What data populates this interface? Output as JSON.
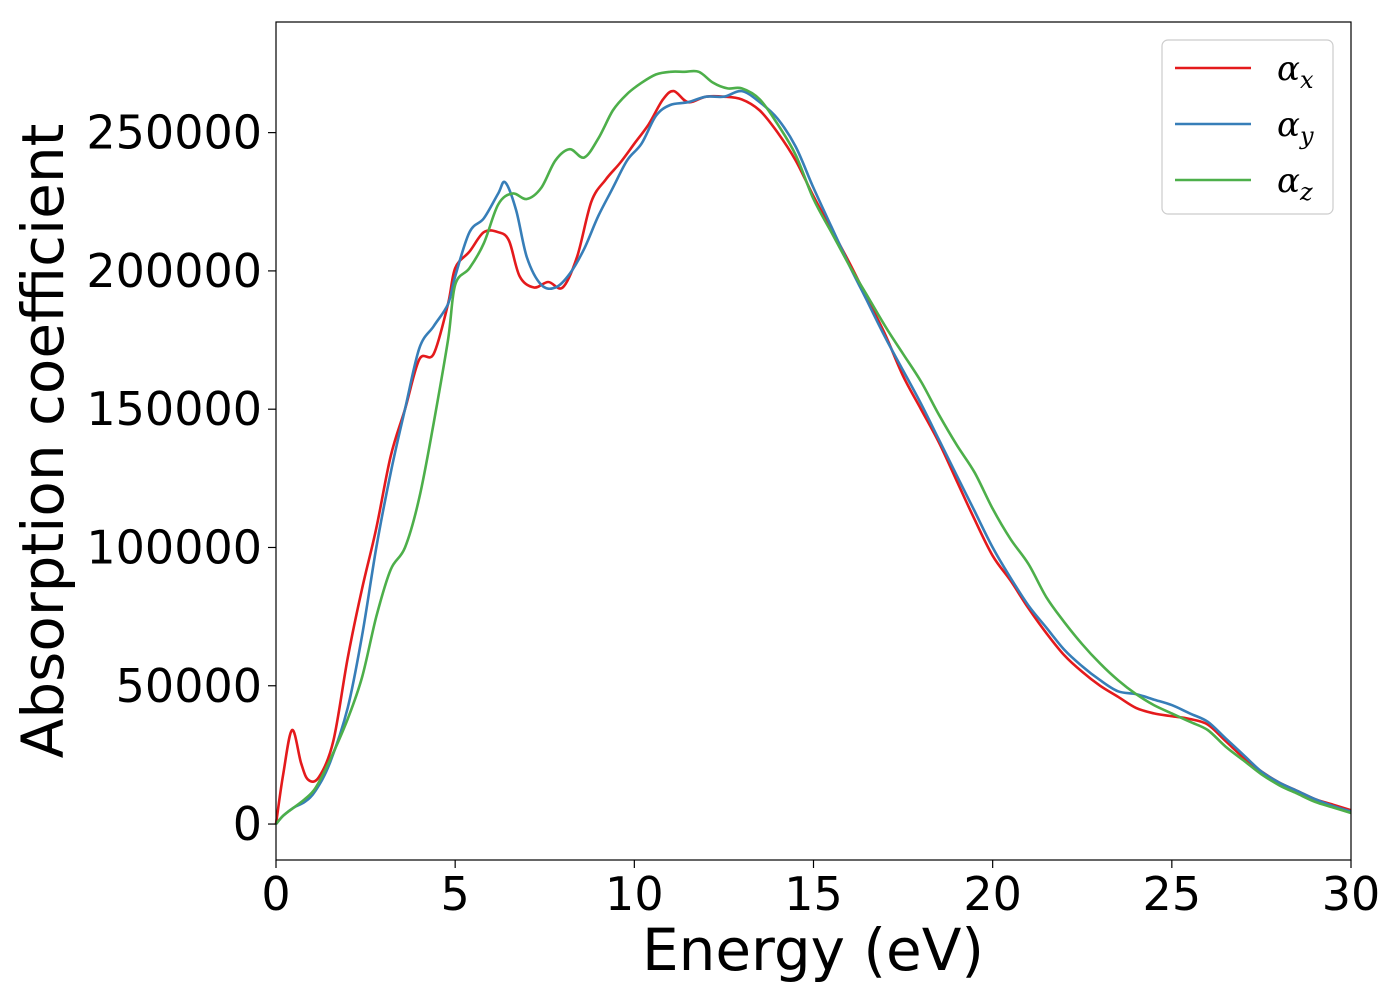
{
  "chart_data": {
    "type": "line",
    "title": "",
    "xlabel": "Energy (eV)",
    "ylabel": "Absorption coefficient",
    "xlim": [
      0,
      30
    ],
    "ylim": [
      -13000,
      290000
    ],
    "xticks": [
      0,
      5,
      10,
      15,
      20,
      25,
      30
    ],
    "xtick_labels": [
      "0",
      "5",
      "10",
      "15",
      "20",
      "25",
      "30"
    ],
    "yticks": [
      0,
      50000,
      100000,
      150000,
      200000,
      250000
    ],
    "ytick_labels": [
      "0",
      "50000",
      "100000",
      "150000",
      "200000",
      "250000"
    ],
    "grid": false,
    "legend_position": "top-right",
    "series": [
      {
        "name": "αx",
        "symbol": "α",
        "subscript": "x",
        "color": "#e41a1c",
        "points": [
          [
            0,
            0
          ],
          [
            0.2,
            18000
          ],
          [
            0.45,
            34000
          ],
          [
            0.7,
            22000
          ],
          [
            0.9,
            16000
          ],
          [
            1.2,
            17000
          ],
          [
            1.6,
            30000
          ],
          [
            2.0,
            60000
          ],
          [
            2.4,
            85000
          ],
          [
            2.8,
            107000
          ],
          [
            3.2,
            133000
          ],
          [
            3.6,
            150000
          ],
          [
            4.0,
            168000
          ],
          [
            4.4,
            170000
          ],
          [
            4.8,
            188000
          ],
          [
            5.0,
            201000
          ],
          [
            5.4,
            207000
          ],
          [
            5.8,
            214000
          ],
          [
            6.2,
            214000
          ],
          [
            6.5,
            211000
          ],
          [
            6.8,
            198000
          ],
          [
            7.2,
            194000
          ],
          [
            7.6,
            196000
          ],
          [
            8.0,
            194000
          ],
          [
            8.4,
            205000
          ],
          [
            8.8,
            225000
          ],
          [
            9.2,
            233000
          ],
          [
            9.6,
            239000
          ],
          [
            10.0,
            246000
          ],
          [
            10.4,
            253000
          ],
          [
            10.8,
            262000
          ],
          [
            11.1,
            265000
          ],
          [
            11.5,
            261000
          ],
          [
            12.0,
            263000
          ],
          [
            12.5,
            263000
          ],
          [
            13.0,
            262000
          ],
          [
            13.5,
            258000
          ],
          [
            14.0,
            250000
          ],
          [
            14.5,
            240000
          ],
          [
            15.0,
            227000
          ],
          [
            15.5,
            215000
          ],
          [
            16.0,
            203000
          ],
          [
            16.5,
            190000
          ],
          [
            17.0,
            177000
          ],
          [
            17.5,
            162000
          ],
          [
            18.0,
            150000
          ],
          [
            18.5,
            138000
          ],
          [
            19.0,
            124000
          ],
          [
            19.5,
            110000
          ],
          [
            20.0,
            97000
          ],
          [
            20.5,
            88000
          ],
          [
            21.0,
            78000
          ],
          [
            21.5,
            69000
          ],
          [
            22.0,
            61000
          ],
          [
            22.5,
            55000
          ],
          [
            23.0,
            50000
          ],
          [
            23.5,
            46000
          ],
          [
            24.0,
            42000
          ],
          [
            24.5,
            40000
          ],
          [
            25.0,
            39000
          ],
          [
            25.5,
            38000
          ],
          [
            26.0,
            36000
          ],
          [
            26.5,
            30000
          ],
          [
            27.0,
            24000
          ],
          [
            27.5,
            19000
          ],
          [
            28.0,
            15000
          ],
          [
            28.5,
            12000
          ],
          [
            29.0,
            9000
          ],
          [
            29.5,
            7000
          ],
          [
            30.0,
            5000
          ]
        ]
      },
      {
        "name": "αy",
        "symbol": "α",
        "subscript": "y",
        "color": "#377eb8",
        "points": [
          [
            0,
            0
          ],
          [
            0.2,
            3000
          ],
          [
            0.5,
            6000
          ],
          [
            0.8,
            8000
          ],
          [
            1.1,
            12000
          ],
          [
            1.5,
            22000
          ],
          [
            2.0,
            42000
          ],
          [
            2.4,
            68000
          ],
          [
            2.8,
            100000
          ],
          [
            3.2,
            127000
          ],
          [
            3.6,
            150000
          ],
          [
            4.0,
            172000
          ],
          [
            4.4,
            180000
          ],
          [
            4.8,
            188000
          ],
          [
            5.0,
            198000
          ],
          [
            5.4,
            214000
          ],
          [
            5.8,
            219000
          ],
          [
            6.2,
            228000
          ],
          [
            6.4,
            232000
          ],
          [
            6.7,
            222000
          ],
          [
            7.0,
            205000
          ],
          [
            7.4,
            195000
          ],
          [
            7.8,
            194000
          ],
          [
            8.2,
            199000
          ],
          [
            8.6,
            208000
          ],
          [
            9.0,
            220000
          ],
          [
            9.4,
            230000
          ],
          [
            9.8,
            240000
          ],
          [
            10.2,
            246000
          ],
          [
            10.6,
            256000
          ],
          [
            11.0,
            260000
          ],
          [
            11.5,
            261000
          ],
          [
            12.0,
            263000
          ],
          [
            12.5,
            263000
          ],
          [
            13.0,
            265000
          ],
          [
            13.5,
            261000
          ],
          [
            14.0,
            255000
          ],
          [
            14.5,
            245000
          ],
          [
            15.0,
            230000
          ],
          [
            15.5,
            216000
          ],
          [
            16.0,
            202000
          ],
          [
            16.5,
            189000
          ],
          [
            17.0,
            176000
          ],
          [
            17.5,
            164000
          ],
          [
            18.0,
            152000
          ],
          [
            18.5,
            139000
          ],
          [
            19.0,
            126000
          ],
          [
            19.5,
            113000
          ],
          [
            20.0,
            100000
          ],
          [
            20.5,
            89000
          ],
          [
            21.0,
            79000
          ],
          [
            21.5,
            71000
          ],
          [
            22.0,
            63000
          ],
          [
            22.5,
            57000
          ],
          [
            23.0,
            52000
          ],
          [
            23.5,
            48000
          ],
          [
            24.0,
            47000
          ],
          [
            24.5,
            45000
          ],
          [
            25.0,
            43000
          ],
          [
            25.5,
            40000
          ],
          [
            26.0,
            37000
          ],
          [
            26.5,
            31000
          ],
          [
            27.0,
            25000
          ],
          [
            27.5,
            19000
          ],
          [
            28.0,
            15000
          ],
          [
            28.5,
            12000
          ],
          [
            29.0,
            9000
          ],
          [
            29.5,
            6500
          ],
          [
            30.0,
            4500
          ]
        ]
      },
      {
        "name": "αz",
        "symbol": "α",
        "subscript": "z",
        "color": "#4daf4a",
        "points": [
          [
            0,
            0
          ],
          [
            0.2,
            3000
          ],
          [
            0.5,
            6000
          ],
          [
            0.8,
            9000
          ],
          [
            1.1,
            13000
          ],
          [
            1.5,
            23000
          ],
          [
            2.0,
            38000
          ],
          [
            2.4,
            53000
          ],
          [
            2.8,
            75000
          ],
          [
            3.2,
            92000
          ],
          [
            3.6,
            100000
          ],
          [
            4.0,
            118000
          ],
          [
            4.4,
            145000
          ],
          [
            4.8,
            175000
          ],
          [
            5.0,
            195000
          ],
          [
            5.4,
            201000
          ],
          [
            5.8,
            210000
          ],
          [
            6.2,
            224000
          ],
          [
            6.6,
            228000
          ],
          [
            7.0,
            226000
          ],
          [
            7.4,
            230000
          ],
          [
            7.8,
            240000
          ],
          [
            8.2,
            244000
          ],
          [
            8.6,
            241000
          ],
          [
            9.0,
            248000
          ],
          [
            9.4,
            258000
          ],
          [
            9.8,
            264000
          ],
          [
            10.2,
            268000
          ],
          [
            10.6,
            271000
          ],
          [
            11.0,
            272000
          ],
          [
            11.4,
            272000
          ],
          [
            11.8,
            272000
          ],
          [
            12.2,
            268000
          ],
          [
            12.6,
            266000
          ],
          [
            13.0,
            266000
          ],
          [
            13.5,
            262000
          ],
          [
            14.0,
            253000
          ],
          [
            14.5,
            242000
          ],
          [
            15.0,
            226000
          ],
          [
            15.5,
            214000
          ],
          [
            16.0,
            202000
          ],
          [
            16.5,
            191000
          ],
          [
            17.0,
            180000
          ],
          [
            17.5,
            170000
          ],
          [
            18.0,
            160000
          ],
          [
            18.5,
            148000
          ],
          [
            19.0,
            137000
          ],
          [
            19.5,
            127000
          ],
          [
            20.0,
            114000
          ],
          [
            20.5,
            103000
          ],
          [
            21.0,
            94000
          ],
          [
            21.5,
            82000
          ],
          [
            22.0,
            73000
          ],
          [
            22.5,
            65000
          ],
          [
            23.0,
            58000
          ],
          [
            23.5,
            52000
          ],
          [
            24.0,
            47000
          ],
          [
            24.5,
            43000
          ],
          [
            25.0,
            40000
          ],
          [
            25.5,
            37000
          ],
          [
            26.0,
            34000
          ],
          [
            26.5,
            28000
          ],
          [
            27.0,
            23000
          ],
          [
            27.5,
            18000
          ],
          [
            28.0,
            14000
          ],
          [
            28.5,
            11000
          ],
          [
            29.0,
            8000
          ],
          [
            29.5,
            6000
          ],
          [
            30.0,
            4000
          ]
        ]
      }
    ]
  }
}
